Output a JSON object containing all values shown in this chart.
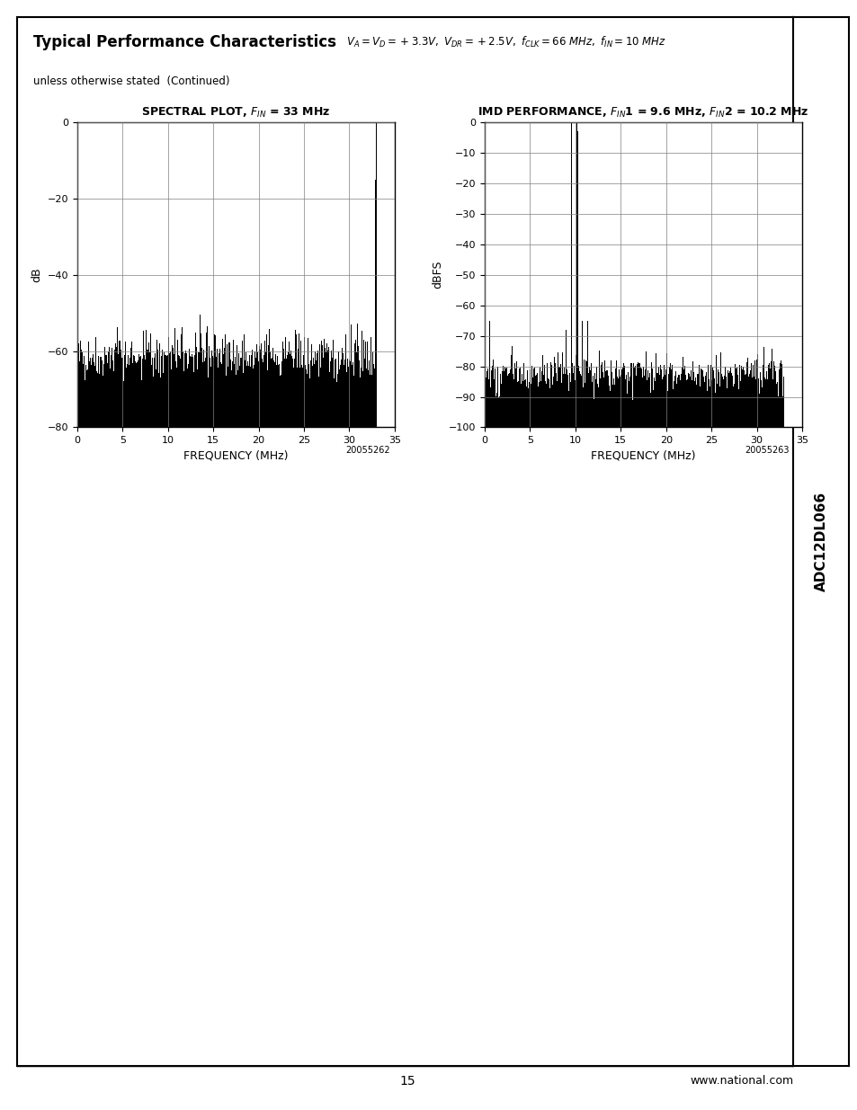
{
  "title_bold": "Typical Performance Characteristics",
  "subtitle": "unless otherwise stated  (Continued)",
  "plot1_ylabel": "dB",
  "plot1_xlabel": "FREQUENCY (MHz)",
  "plot1_xlim": [
    0,
    35
  ],
  "plot1_ylim": [
    -80,
    0
  ],
  "plot1_yticks": [
    0,
    -20,
    -40,
    -60,
    -80
  ],
  "plot1_xticks": [
    0,
    5,
    10,
    15,
    20,
    25,
    30,
    35
  ],
  "plot1_noise_floor": -62,
  "plot1_caption": "20055262",
  "plot2_ylabel": "dBFS",
  "plot2_xlabel": "FREQUENCY (MHz)",
  "plot2_xlim": [
    0,
    35
  ],
  "plot2_ylim": [
    -100,
    0
  ],
  "plot2_yticks": [
    0,
    -10,
    -20,
    -30,
    -40,
    -50,
    -60,
    -70,
    -80,
    -90,
    -100
  ],
  "plot2_xticks": [
    0,
    5,
    10,
    15,
    20,
    25,
    30,
    35
  ],
  "plot2_noise_floor": -83,
  "plot2_caption": "20055263",
  "sidebar_text": "ADC12DL066",
  "page_num": "15",
  "website": "www.national.com",
  "background_color": "#ffffff",
  "bar_color": "#000000",
  "grid_color": "#808080",
  "text_color": "#000000"
}
